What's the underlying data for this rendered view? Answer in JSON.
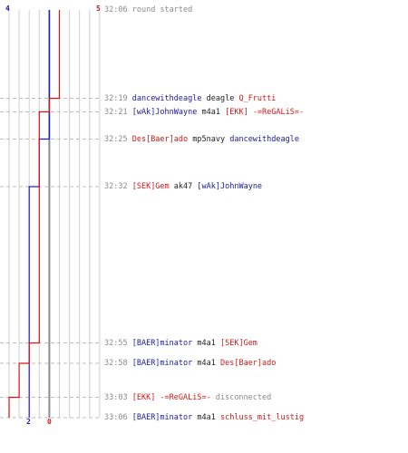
{
  "chart_data": {
    "type": "line",
    "team_blue": {
      "color": "#1a1aee",
      "start_score": "4",
      "end_score": "2",
      "steps": [
        {
          "time": "32:25",
          "score": 3
        },
        {
          "time": "32:32",
          "score": 2
        }
      ]
    },
    "team_red": {
      "color": "#dd1111",
      "start_score": "5",
      "end_score": "0",
      "steps": [
        {
          "time": "32:19",
          "score": 4
        },
        {
          "time": "32:21",
          "score": 3
        },
        {
          "time": "32:55",
          "score": 2
        },
        {
          "time": "32:58",
          "score": 1
        },
        {
          "time": "33:03",
          "score": 0
        }
      ]
    },
    "y_ticks": [
      "32:19",
      "32:21",
      "32:25",
      "32:32",
      "32:55",
      "32:58",
      "33:03",
      "33:06"
    ]
  },
  "events": [
    {
      "time": "32:06",
      "parts": [
        {
          "text": "round started",
          "color": "gray"
        }
      ]
    },
    {
      "time": "32:19",
      "parts": [
        {
          "text": "dancewithdeagle",
          "color": "blue"
        },
        {
          "text": "deagle",
          "color": "black"
        },
        {
          "text": "Q_Frutti",
          "color": "red"
        }
      ]
    },
    {
      "time": "32:21",
      "parts": [
        {
          "text": "[wAk]JohnWayne",
          "color": "blue"
        },
        {
          "text": "m4a1",
          "color": "black"
        },
        {
          "text": "[EKK] -=ReGALiS=-",
          "color": "red"
        }
      ]
    },
    {
      "time": "32:25",
      "parts": [
        {
          "text": "Des[Baer]ado",
          "color": "red"
        },
        {
          "text": "mp5navy",
          "color": "black"
        },
        {
          "text": "dancewithdeagle",
          "color": "blue"
        }
      ]
    },
    {
      "time": "32:32",
      "parts": [
        {
          "text": "[SEK]Gem",
          "color": "red"
        },
        {
          "text": "ak47",
          "color": "black"
        },
        {
          "text": "[wAk]JohnWayne",
          "color": "blue"
        }
      ]
    },
    {
      "time": "32:55",
      "parts": [
        {
          "text": "[BAER]minator",
          "color": "blue"
        },
        {
          "text": "m4a1",
          "color": "black"
        },
        {
          "text": "[SEK]Gem",
          "color": "red"
        }
      ]
    },
    {
      "time": "32:58",
      "parts": [
        {
          "text": "[BAER]minator",
          "color": "blue"
        },
        {
          "text": "m4a1",
          "color": "black"
        },
        {
          "text": "Des[Baer]ado",
          "color": "red"
        }
      ]
    },
    {
      "time": "33:03",
      "parts": [
        {
          "text": "[EKK] -=ReGALiS=-",
          "color": "red"
        },
        {
          "text": "disconnected",
          "color": "gray"
        }
      ]
    },
    {
      "time": "33:06",
      "parts": [
        {
          "text": "[BAER]minator",
          "color": "blue"
        },
        {
          "text": "m4a1",
          "color": "black"
        },
        {
          "text": "schluss_mit_lustig",
          "color": "red"
        }
      ]
    }
  ]
}
